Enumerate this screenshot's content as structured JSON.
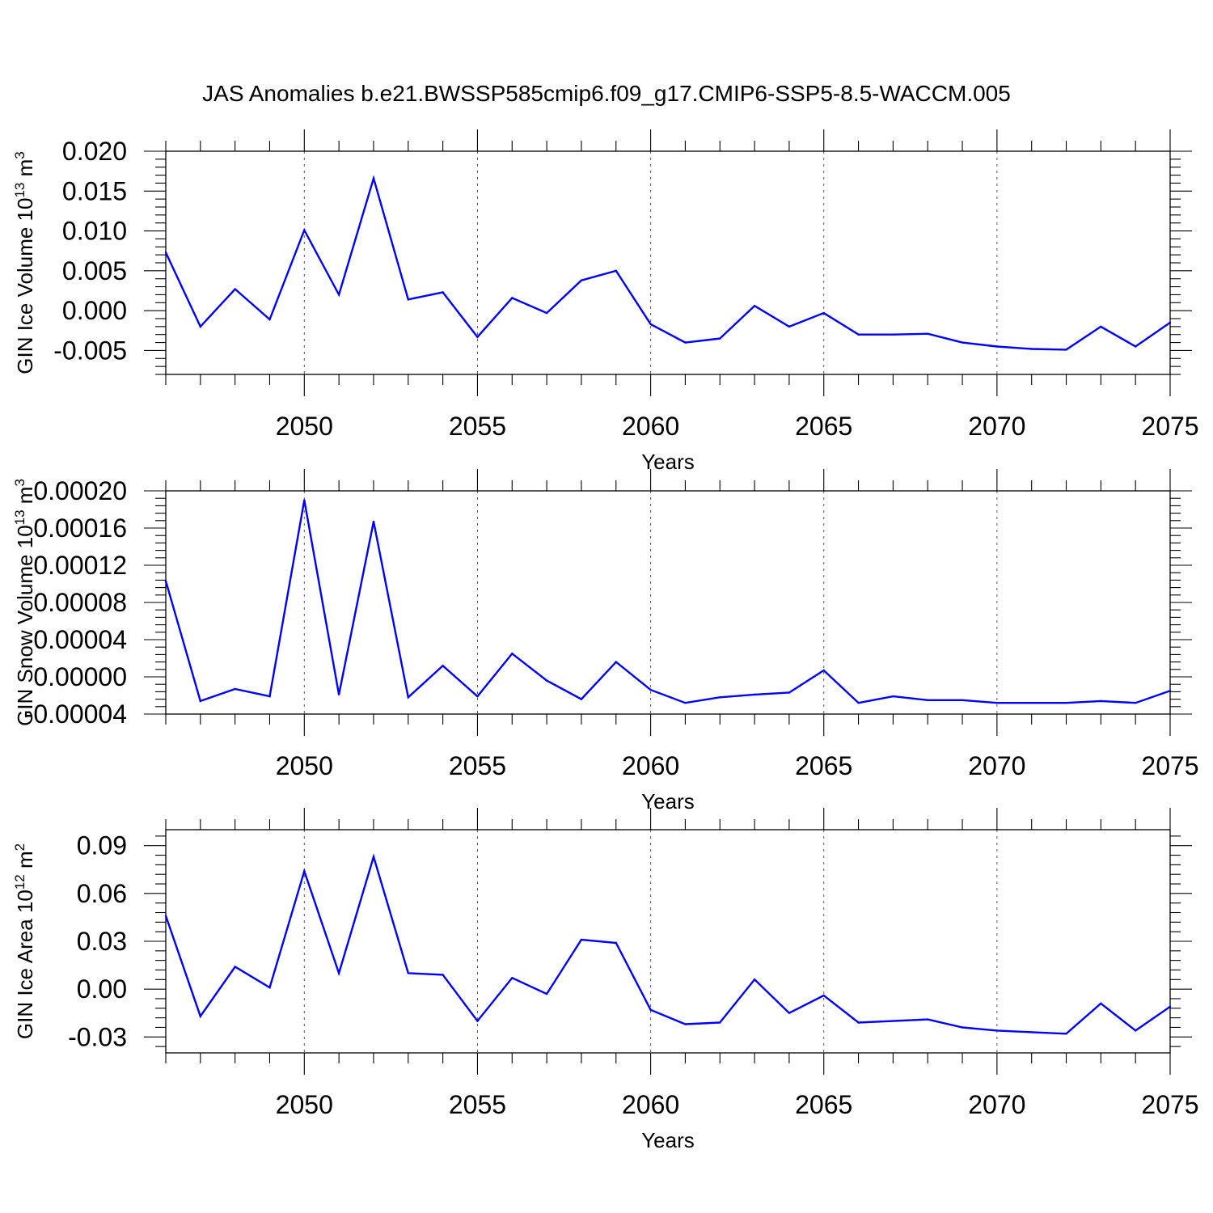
{
  "figure": {
    "title": "JAS Anomalies b.e21.BWSSP585cmip6.f09_g17.CMIP6-SSP5-8.5-WACCM.005",
    "line_color": "#0000ff"
  },
  "chart_data": [
    {
      "type": "line",
      "title": "",
      "xlabel": "Years",
      "ylabel": {
        "base": "GIN Ice Volume 10",
        "sup": "13",
        "unit": " m",
        "unit_sup": "3"
      },
      "xlim": [
        2046,
        2075
      ],
      "ylim": [
        -0.008,
        0.02
      ],
      "xticks": [
        2050,
        2055,
        2060,
        2065,
        2070,
        2075
      ],
      "yticks": [
        -0.005,
        0.0,
        0.005,
        0.01,
        0.015,
        0.02
      ],
      "ytick_labels": [
        "-0.005",
        "0.000",
        "0.005",
        "0.010",
        "0.015",
        "0.020"
      ],
      "grid": "x-dashed",
      "x": [
        2046,
        2047,
        2048,
        2049,
        2050,
        2051,
        2052,
        2053,
        2054,
        2055,
        2056,
        2057,
        2058,
        2059,
        2060,
        2061,
        2062,
        2063,
        2064,
        2065,
        2066,
        2067,
        2068,
        2069,
        2070,
        2071,
        2072,
        2073,
        2074,
        2075
      ],
      "series": [
        {
          "values": [
            0.0073,
            -0.002,
            0.0027,
            -0.0011,
            0.0101,
            0.002,
            0.0166,
            0.0014,
            0.0023,
            -0.0033,
            0.0016,
            -0.0003,
            0.0038,
            0.005,
            -0.0017,
            -0.004,
            -0.0035,
            0.0006,
            -0.002,
            -0.0003,
            -0.003,
            -0.003,
            -0.0029,
            -0.004,
            -0.0045,
            -0.0048,
            -0.0049,
            -0.002,
            -0.0045,
            -0.0015
          ]
        }
      ]
    },
    {
      "type": "line",
      "title": "",
      "xlabel": "Years",
      "ylabel": {
        "base": "GIN Snow Volume 10",
        "sup": "13",
        "unit": " m",
        "unit_sup": "3"
      },
      "xlim": [
        2046,
        2075
      ],
      "ylim": [
        -4e-05,
        0.0002
      ],
      "xticks": [
        2050,
        2055,
        2060,
        2065,
        2070,
        2075
      ],
      "yticks": [
        -4e-05,
        0.0,
        4e-05,
        8e-05,
        0.00012,
        0.00016,
        0.0002
      ],
      "ytick_labels": [
        "-0.00004",
        "0.00000",
        "0.00004",
        "0.00008",
        "0.00012",
        "0.00016",
        "0.00020"
      ],
      "grid": "x-dashed",
      "x": [
        2046,
        2047,
        2048,
        2049,
        2050,
        2051,
        2052,
        2053,
        2054,
        2055,
        2056,
        2057,
        2058,
        2059,
        2060,
        2061,
        2062,
        2063,
        2064,
        2065,
        2066,
        2067,
        2068,
        2069,
        2070,
        2071,
        2072,
        2073,
        2074,
        2075
      ],
      "series": [
        {
          "values": [
            0.000103,
            -2.6e-05,
            -1.3e-05,
            -2.1e-05,
            0.00019,
            -1.9e-05,
            0.000167,
            -2.2e-05,
            1.2e-05,
            -2.1e-05,
            2.5e-05,
            -4e-06,
            -2.4e-05,
            1.6e-05,
            -1.4e-05,
            -2.8e-05,
            -2.2e-05,
            -1.9e-05,
            -1.7e-05,
            7e-06,
            -2.8e-05,
            -2.1e-05,
            -2.5e-05,
            -2.5e-05,
            -2.8e-05,
            -2.8e-05,
            -2.8e-05,
            -2.6e-05,
            -2.8e-05,
            -1.5e-05
          ]
        }
      ]
    },
    {
      "type": "line",
      "title": "",
      "xlabel": "Years",
      "ylabel": {
        "base": "GIN Ice Area 10",
        "sup": "12",
        "unit": " m",
        "unit_sup": "2"
      },
      "xlim": [
        2046,
        2075
      ],
      "ylim": [
        -0.04,
        0.1
      ],
      "xticks": [
        2050,
        2055,
        2060,
        2065,
        2070,
        2075
      ],
      "yticks": [
        -0.03,
        0.0,
        0.03,
        0.06,
        0.09
      ],
      "ytick_labels": [
        "-0.03",
        "0.00",
        "0.03",
        "0.06",
        "0.09"
      ],
      "grid": "x-dashed",
      "x": [
        2046,
        2047,
        2048,
        2049,
        2050,
        2051,
        2052,
        2053,
        2054,
        2055,
        2056,
        2057,
        2058,
        2059,
        2060,
        2061,
        2062,
        2063,
        2064,
        2065,
        2066,
        2067,
        2068,
        2069,
        2070,
        2071,
        2072,
        2073,
        2074,
        2075
      ],
      "series": [
        {
          "values": [
            0.046,
            -0.017,
            0.014,
            0.001,
            0.074,
            0.01,
            0.083,
            0.01,
            0.009,
            -0.02,
            0.007,
            -0.003,
            0.031,
            0.029,
            -0.013,
            -0.022,
            -0.021,
            0.006,
            -0.015,
            -0.004,
            -0.021,
            -0.02,
            -0.019,
            -0.024,
            -0.026,
            -0.027,
            -0.028,
            -0.009,
            -0.026,
            -0.011
          ]
        }
      ]
    }
  ]
}
